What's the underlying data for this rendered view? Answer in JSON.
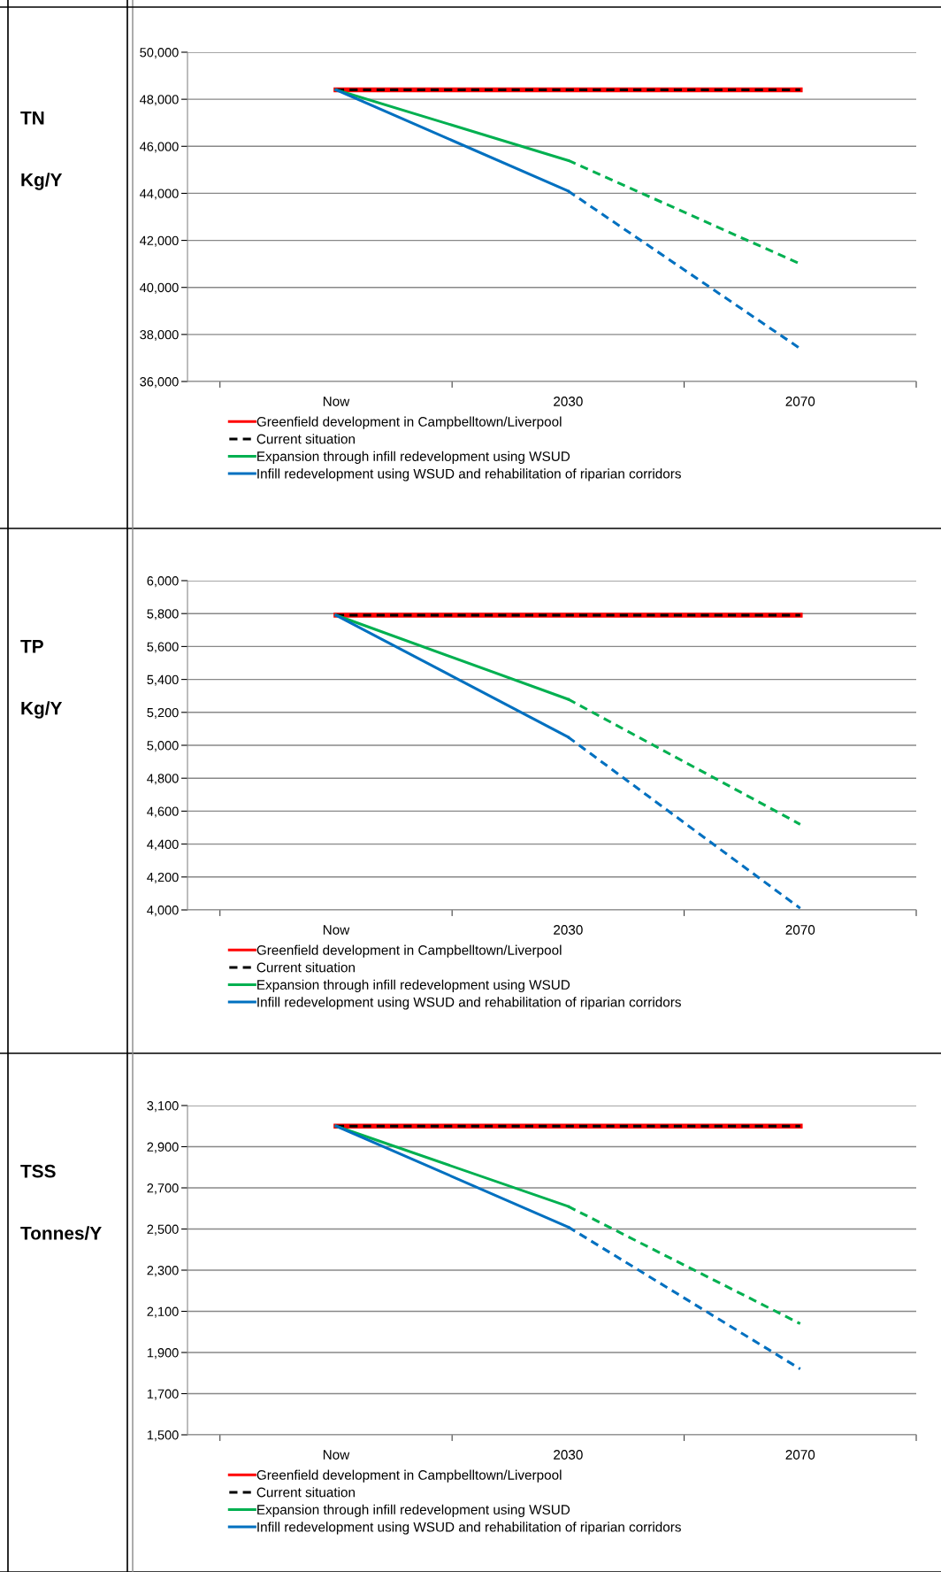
{
  "chart_data": [
    {
      "type": "line",
      "title": "TN",
      "ylabel": "Kg/Y",
      "categories": [
        "Now",
        "2030",
        "2070"
      ],
      "ylim": [
        36000,
        50000
      ],
      "yticks": [
        {
          "value": 36000,
          "label": "36,000"
        },
        {
          "value": 38000,
          "label": "38,000"
        },
        {
          "value": 40000,
          "label": "40,000"
        },
        {
          "value": 42000,
          "label": "42,000"
        },
        {
          "value": 44000,
          "label": "44,000"
        },
        {
          "value": 46000,
          "label": "46,000"
        },
        {
          "value": 48000,
          "label": "48,000"
        },
        {
          "value": 50000,
          "label": "50,000"
        }
      ],
      "grid": "y",
      "legend": "bottom",
      "marker": "none",
      "series": [
        {
          "name": "Greenfield development in Campbelltown/Liverpool",
          "color": "#ff0000",
          "line_style": "solid",
          "values": [
            48400,
            48400,
            48400
          ]
        },
        {
          "name": "Current situation",
          "color": "#000000",
          "line_style": "dashed",
          "values": [
            48400,
            48400,
            48400
          ]
        },
        {
          "name": "Expansion through infill redevelopment using WSUD",
          "color": "#00b050",
          "line_style": "solid",
          "values": [
            48400,
            45400,
            null
          ]
        },
        {
          "name": "Infill redevelopment using WSUD and rehabilitation of riparian corridors",
          "color": "#0070c0",
          "line_style": "solid",
          "values": [
            48400,
            44100,
            null
          ]
        },
        {
          "color": "#00b050",
          "line_style": "dashed",
          "values": [
            null,
            45400,
            41000
          ]
        },
        {
          "color": "#0070c0",
          "line_style": "dashed",
          "values": [
            null,
            44100,
            37400
          ]
        }
      ]
    },
    {
      "type": "line",
      "title": "TP",
      "ylabel": "Kg/Y",
      "categories": [
        "Now",
        "2030",
        "2070"
      ],
      "ylim": [
        4000,
        6000
      ],
      "yticks": [
        {
          "value": 4000,
          "label": "4,000"
        },
        {
          "value": 4200,
          "label": "4,200"
        },
        {
          "value": 4400,
          "label": "4,400"
        },
        {
          "value": 4600,
          "label": "4,600"
        },
        {
          "value": 4800,
          "label": "4,800"
        },
        {
          "value": 5000,
          "label": "5,000"
        },
        {
          "value": 5200,
          "label": "5,200"
        },
        {
          "value": 5400,
          "label": "5,400"
        },
        {
          "value": 5600,
          "label": "5,600"
        },
        {
          "value": 5800,
          "label": "5,800"
        },
        {
          "value": 6000,
          "label": "6,000"
        }
      ],
      "grid": "y",
      "legend": "bottom",
      "marker": "none",
      "series": [
        {
          "name": "Greenfield development in Campbelltown/Liverpool",
          "color": "#ff0000",
          "line_style": "solid",
          "values": [
            5790,
            5790,
            5790
          ]
        },
        {
          "name": "Current situation",
          "color": "#000000",
          "line_style": "dashed",
          "values": [
            5790,
            5790,
            5790
          ]
        },
        {
          "name": "Expansion through infill redevelopment using WSUD",
          "color": "#00b050",
          "line_style": "solid",
          "values": [
            5790,
            5280,
            null
          ]
        },
        {
          "name": "Infill redevelopment using WSUD and rehabilitation of riparian corridors",
          "color": "#0070c0",
          "line_style": "solid",
          "values": [
            5790,
            5050,
            null
          ]
        },
        {
          "color": "#00b050",
          "line_style": "dashed",
          "values": [
            null,
            5280,
            4520
          ]
        },
        {
          "color": "#0070c0",
          "line_style": "dashed",
          "values": [
            null,
            5050,
            4010
          ]
        }
      ]
    },
    {
      "type": "line",
      "title": "TSS",
      "ylabel": "Tonnes/Y",
      "categories": [
        "Now",
        "2030",
        "2070"
      ],
      "ylim": [
        1500,
        3100
      ],
      "yticks": [
        {
          "value": 1500,
          "label": "1,500"
        },
        {
          "value": 1700,
          "label": "1,700"
        },
        {
          "value": 1900,
          "label": "1,900"
        },
        {
          "value": 2100,
          "label": "2,100"
        },
        {
          "value": 2300,
          "label": "2,300"
        },
        {
          "value": 2500,
          "label": "2,500"
        },
        {
          "value": 2700,
          "label": "2,700"
        },
        {
          "value": 2900,
          "label": "2,900"
        },
        {
          "value": 3100,
          "label": "3,100"
        }
      ],
      "grid": "y",
      "legend": "bottom",
      "marker": "none",
      "series": [
        {
          "name": "Greenfield development in Campbelltown/Liverpool",
          "color": "#ff0000",
          "line_style": "solid",
          "values": [
            3000,
            3000,
            3000
          ]
        },
        {
          "name": "Current situation",
          "color": "#000000",
          "line_style": "dashed",
          "values": [
            3000,
            3000,
            3000
          ]
        },
        {
          "name": "Expansion through infill redevelopment using WSUD",
          "color": "#00b050",
          "line_style": "solid",
          "values": [
            3000,
            2610,
            null
          ]
        },
        {
          "name": "Infill redevelopment using WSUD and rehabilitation of riparian corridors",
          "color": "#0070c0",
          "line_style": "solid",
          "values": [
            3000,
            2510,
            null
          ]
        },
        {
          "color": "#00b050",
          "line_style": "dashed",
          "values": [
            null,
            2610,
            2040
          ]
        },
        {
          "color": "#0070c0",
          "line_style": "dashed",
          "values": [
            null,
            2510,
            1820
          ]
        }
      ]
    }
  ]
}
